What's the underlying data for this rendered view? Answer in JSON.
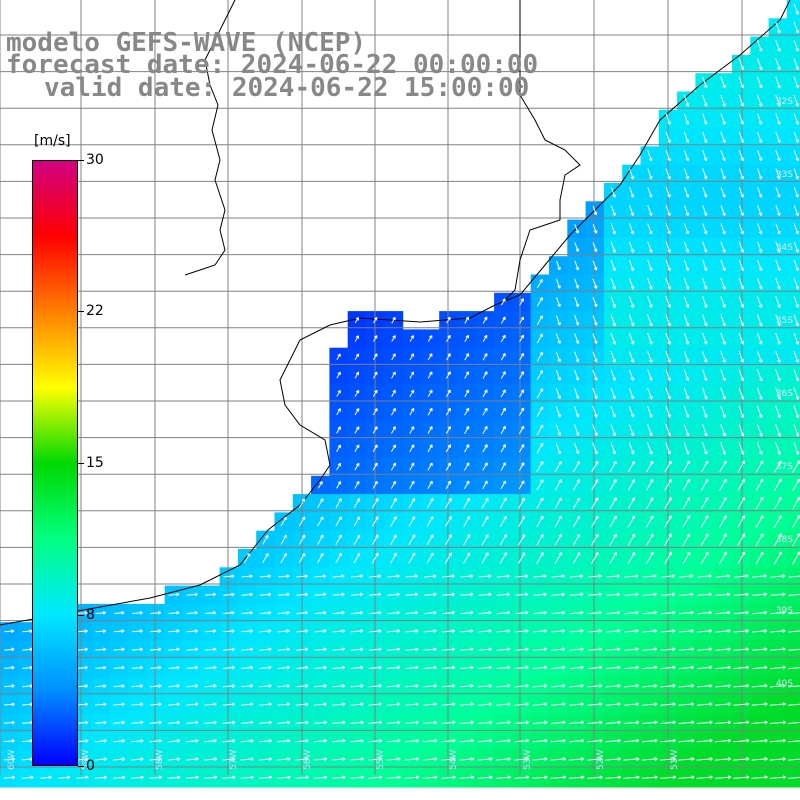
{
  "title": {
    "model_line": "modelo GEFS-WAVE (NCEP)",
    "forecast_line": "forecast date: 2024-06-22 00:00:00",
    "valid_line": "valid date: 2024-06-22 15:00:00"
  },
  "colorbar": {
    "unit": "[m/s]",
    "ticks": [
      "30",
      "22",
      "15",
      "8",
      "0"
    ],
    "colors": [
      "#0000ff",
      "#0090ff",
      "#00e8ff",
      "#00ff80",
      "#00d800",
      "#ffff00",
      "#ff8000",
      "#ff0000",
      "#d00080"
    ]
  },
  "axes": {
    "lat_labels": [
      "32S",
      "33S",
      "34S",
      "35S",
      "36S",
      "37S",
      "38S",
      "39S",
      "40S"
    ],
    "lon_labels": [
      "60W",
      "59W",
      "58W",
      "57W",
      "56W",
      "55W",
      "54W",
      "53W",
      "52W",
      "51W"
    ]
  },
  "colors": {
    "land": "#ffffff",
    "grid": "#808080",
    "coast": "#000000",
    "arrow": "#ffffff",
    "title": "#888888"
  }
}
